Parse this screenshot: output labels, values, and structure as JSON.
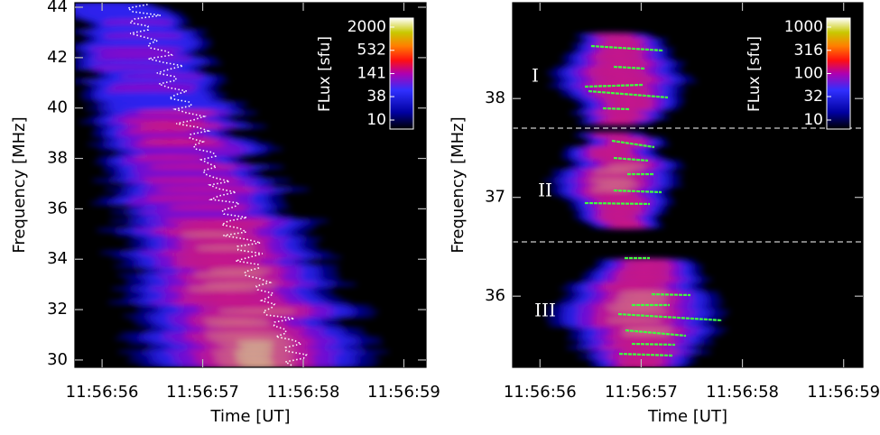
{
  "chart_data": [
    {
      "type": "heatmap",
      "xlabel": "Time [UT]",
      "ylabel": "Frequency [MHz]",
      "xlim": [
        55.73,
        59.22
      ],
      "xticks": [
        {
          "value": 56,
          "label": "11:56:56"
        },
        {
          "value": 57,
          "label": "11:56:57"
        },
        {
          "value": 58,
          "label": "11:56:58"
        },
        {
          "value": 59,
          "label": "11:56:59"
        }
      ],
      "ylim": [
        29.71,
        44.18
      ],
      "yticks": [
        30,
        32,
        34,
        36,
        38,
        40,
        42,
        44
      ],
      "colorbar": {
        "label": "FLux [sfu]",
        "log": true,
        "lim": [
          10,
          2000
        ],
        "ticks": [
          2000,
          532,
          141,
          38,
          10
        ]
      }
    },
    {
      "type": "heatmap",
      "xlabel": "Time [UT]",
      "ylabel": "Frequency [MHz]",
      "xlim": [
        55.73,
        59.19
      ],
      "xticks": [
        {
          "value": 56,
          "label": "11:56:56"
        },
        {
          "value": 57,
          "label": "11:56:57"
        },
        {
          "value": 58,
          "label": "11:56:58"
        },
        {
          "value": 59,
          "label": "11:56:59"
        }
      ],
      "ylim": [
        35.28,
        38.97
      ],
      "yticks": [
        36,
        37,
        38
      ],
      "colorbar": {
        "label": "FLux [sfu]",
        "log": true,
        "lim": [
          10,
          1000
        ],
        "ticks": [
          1000,
          316,
          100,
          32,
          10
        ]
      },
      "dividers": [
        37.7,
        36.55
      ],
      "annotations": [
        "I",
        "II",
        "III"
      ]
    }
  ]
}
